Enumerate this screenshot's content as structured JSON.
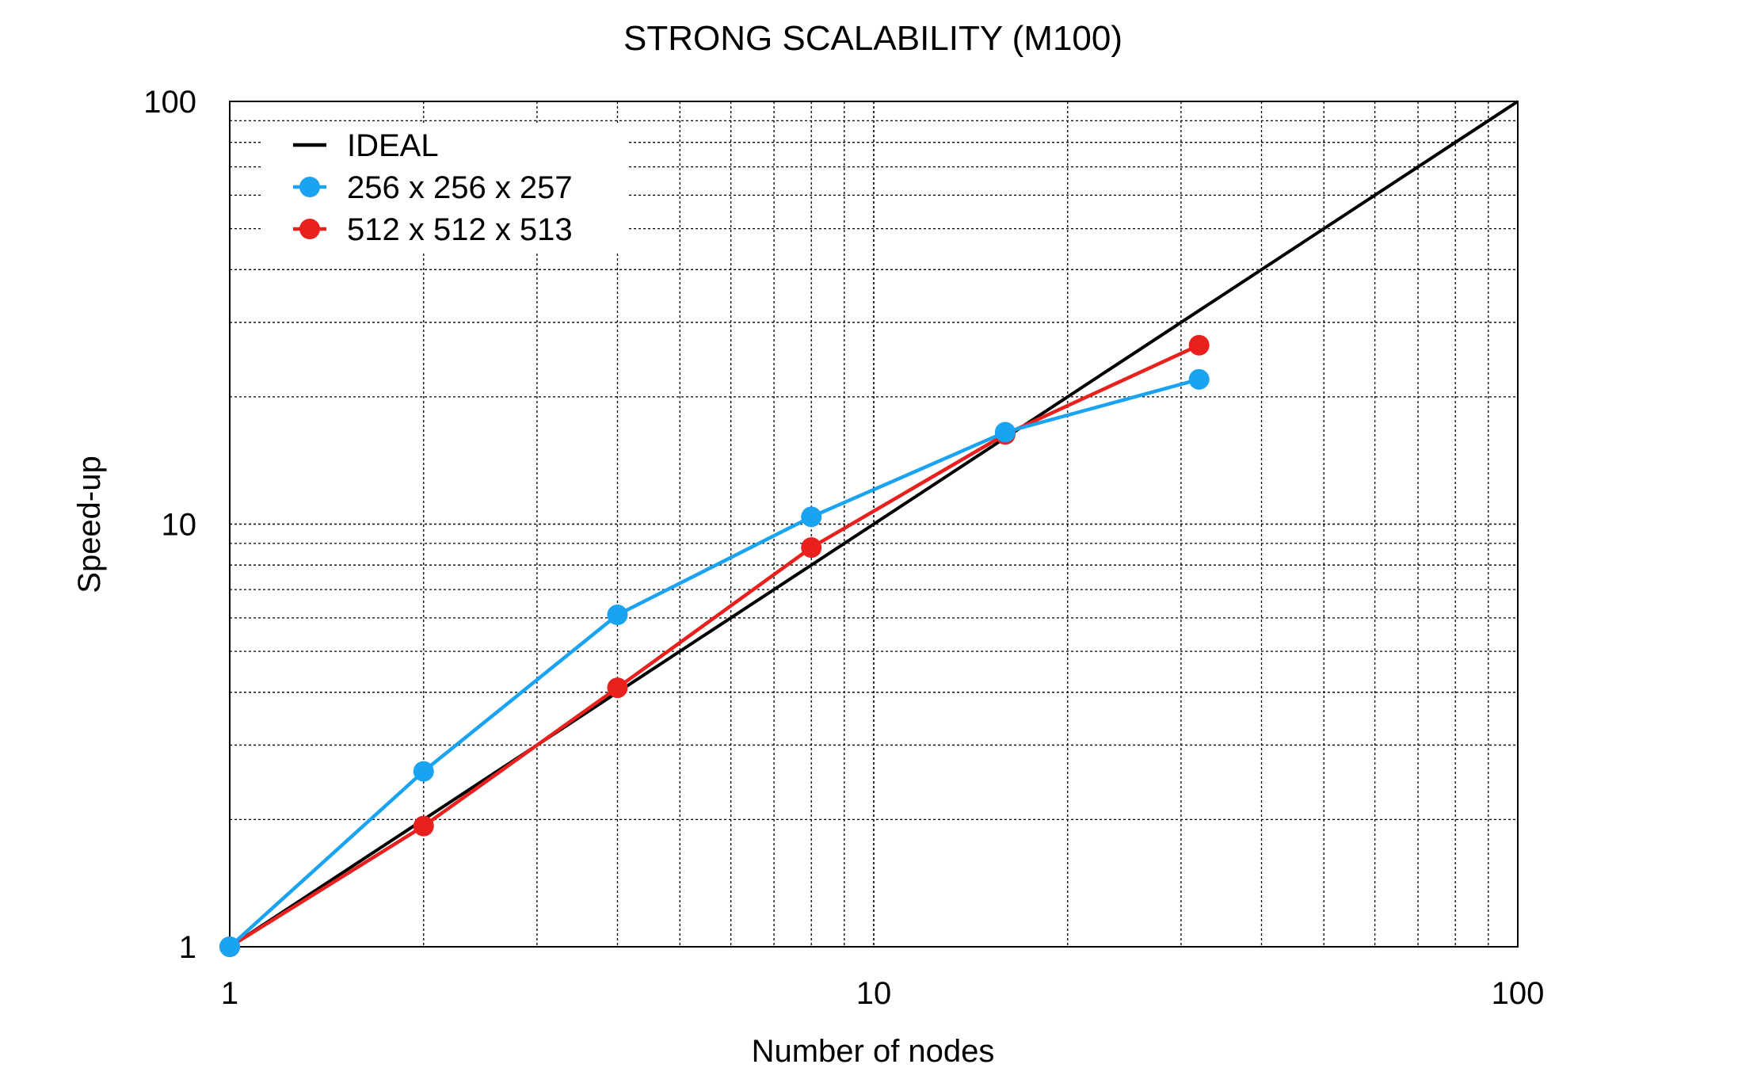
{
  "chart_data": {
    "type": "line",
    "title": "STRONG SCALABILITY (M100)",
    "xlabel": "Number of nodes",
    "ylabel": "Speed-up",
    "xscale": "log",
    "yscale": "log",
    "xlim": [
      1,
      100
    ],
    "ylim": [
      1,
      100
    ],
    "x_ticks": [
      1,
      10,
      100
    ],
    "x_tick_labels": [
      "1",
      "10",
      "100"
    ],
    "y_ticks": [
      1,
      10,
      100
    ],
    "y_tick_labels": [
      "1",
      "10",
      "100"
    ],
    "grid": true,
    "legend_position": "top-left",
    "series": [
      {
        "name": "IDEAL",
        "color": "#000000",
        "markers": false,
        "x": [
          1,
          100
        ],
        "y": [
          1,
          100
        ]
      },
      {
        "name": "256 x 256 x 257",
        "color": "#1aa3f0",
        "markers": true,
        "x": [
          1,
          2,
          4,
          8,
          16,
          32
        ],
        "y": [
          1,
          2.6,
          6.1,
          10.4,
          16.5,
          22.0
        ]
      },
      {
        "name": "512 x 512 x 513",
        "color": "#e8201e",
        "markers": true,
        "x": [
          1,
          2,
          4,
          8,
          16,
          32
        ],
        "y": [
          1,
          1.93,
          4.1,
          8.8,
          16.3,
          26.5
        ]
      }
    ]
  }
}
